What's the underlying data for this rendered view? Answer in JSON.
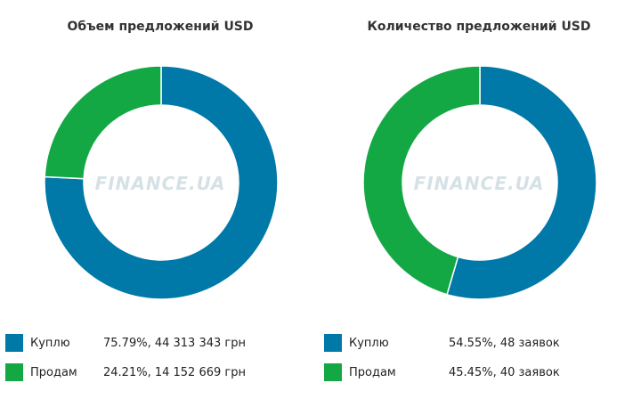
{
  "watermark": "FINANCE.UA",
  "colors": {
    "buy": "#0079A8",
    "sell": "#14A844"
  },
  "chart_data": [
    {
      "type": "pie",
      "title": "Объем предложений USD",
      "categories": [
        "Куплю",
        "Продам"
      ],
      "values": [
        75.79,
        24.21
      ],
      "value_labels": [
        "75.79%, 44 313 343 грн",
        "24.21%, 14 152 669 грн"
      ],
      "legend_position": "bottom"
    },
    {
      "type": "pie",
      "title": "Количество предложений USD",
      "categories": [
        "Куплю",
        "Продам"
      ],
      "values": [
        54.55,
        45.45
      ],
      "value_labels": [
        "54.55%, 48 заявок",
        "45.45%, 40 заявок"
      ],
      "legend_position": "bottom"
    }
  ]
}
